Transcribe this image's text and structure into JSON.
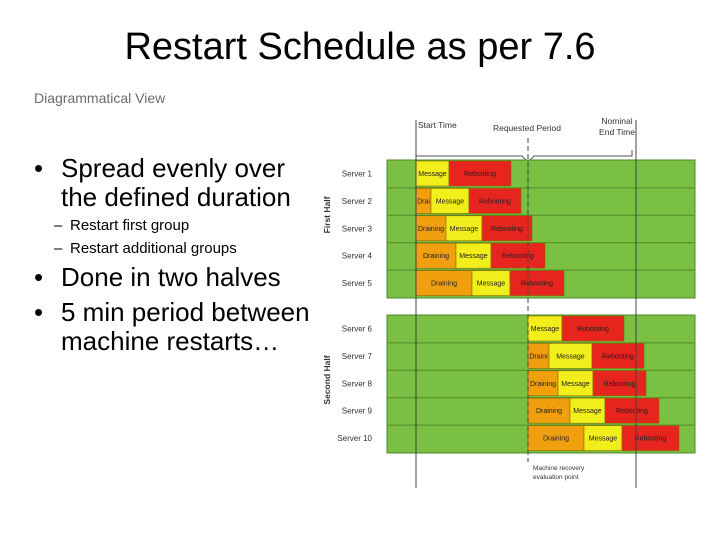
{
  "slide": {
    "title": "Restart Schedule as per 7.6",
    "subtitle": "Diagrammatical View"
  },
  "bullets": [
    {
      "text": "Spread evenly over the defined duration",
      "sub": [
        "Restart first group",
        "Restart additional groups"
      ]
    },
    {
      "text": "Done in two halves",
      "sub": []
    },
    {
      "text": "5 min period between machine restarts…",
      "sub": []
    }
  ],
  "diagram": {
    "header": {
      "start_time": "Start Time",
      "requested_period": "Requested Period",
      "nominal_end_time": "Nominal End Time"
    },
    "groups": [
      {
        "label": "First Half",
        "servers": [
          {
            "name": "Server 1",
            "phases": [
              "Message",
              "Rebooting"
            ]
          },
          {
            "name": "Server 2",
            "phases": [
              "Drai",
              "Message",
              "Rebooting"
            ]
          },
          {
            "name": "Server 3",
            "phases": [
              "Draining",
              "Message",
              "Rebooting"
            ]
          },
          {
            "name": "Server 4",
            "phases": [
              "Draining",
              "Message",
              "Rebooting"
            ]
          },
          {
            "name": "Server 5",
            "phases": [
              "Draining",
              "Message",
              "Rebooting"
            ]
          }
        ]
      },
      {
        "label": "Second Half",
        "servers": [
          {
            "name": "Server 6",
            "phases": [
              "Message",
              "Rebooting"
            ]
          },
          {
            "name": "Server 7",
            "phases": [
              "Draini",
              "Message",
              "Rebooting"
            ]
          },
          {
            "name": "Server 8",
            "phases": [
              "Draining",
              "Message",
              "Rebooting"
            ]
          },
          {
            "name": "Server 9",
            "phases": [
              "Draining",
              "Message",
              "Rebooting"
            ]
          },
          {
            "name": "Server 10",
            "phases": [
              "Draining",
              "Message",
              "Rebooting"
            ]
          }
        ]
      }
    ],
    "footer_note": "Machine recovery evaluation point",
    "colors": {
      "idle": "#7ac143",
      "draining": "#f0a00f",
      "message": "#f2ee1c",
      "rebooting": "#e8241f"
    }
  }
}
